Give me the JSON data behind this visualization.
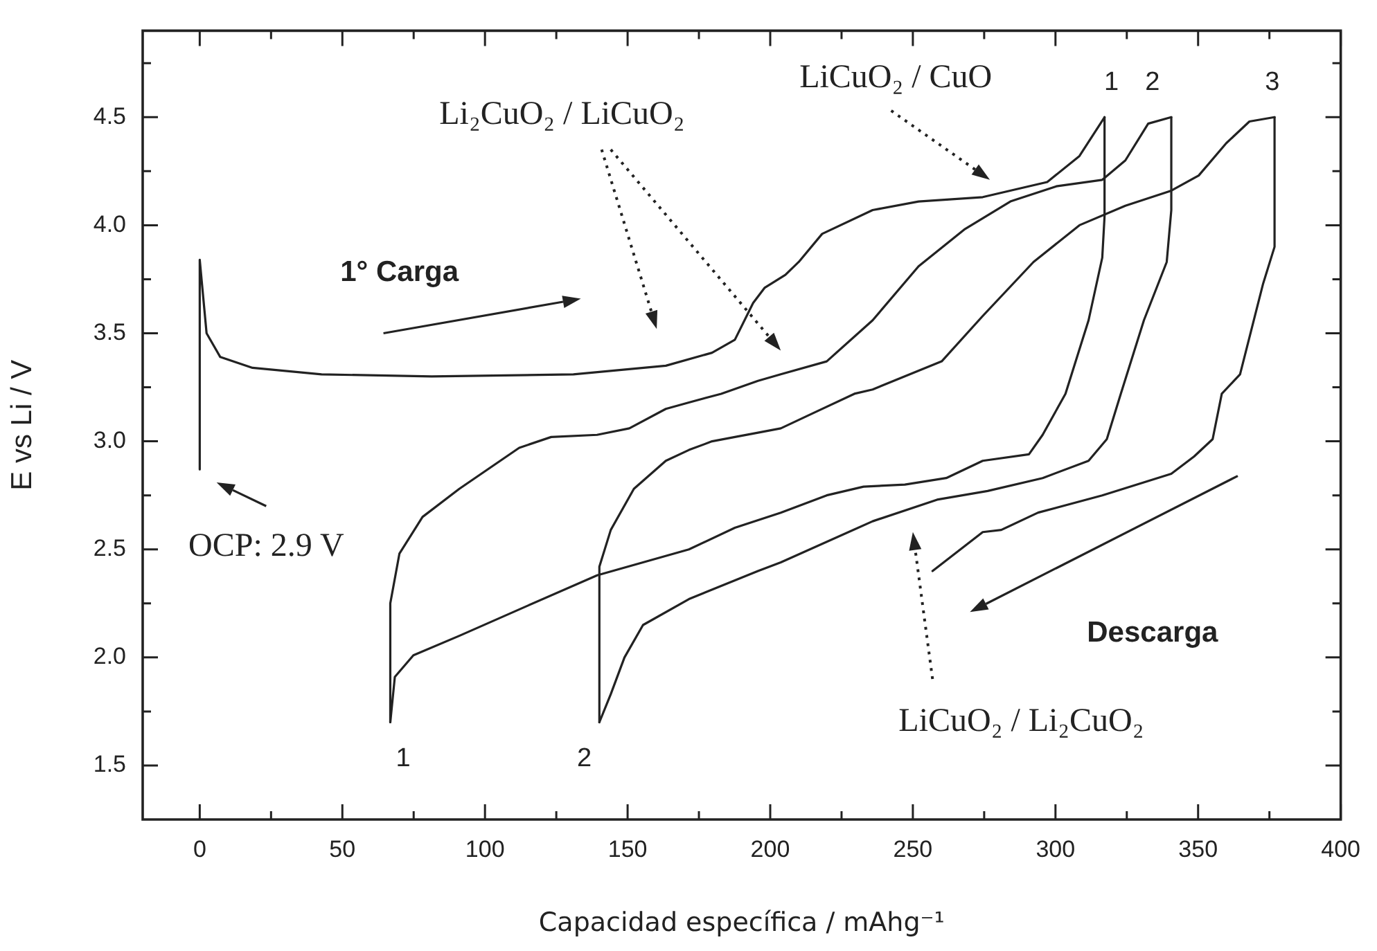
{
  "chart_data": {
    "type": "line",
    "xlabel": "Capacidad específica / mAhg⁻¹",
    "ylabel": "E vs Li / V",
    "xlim": [
      -20,
      400
    ],
    "ylim": [
      1.25,
      4.9
    ],
    "xticks": [
      0,
      {
        "value": 25,
        "label": null
      },
      50,
      {
        "value": 75,
        "label": null
      },
      100,
      {
        "value": 125,
        "label": null
      },
      150,
      {
        "value": 175,
        "label": null
      },
      200,
      {
        "value": 225,
        "label": null
      },
      250,
      {
        "value": 275,
        "label": null
      },
      300,
      {
        "value": 325,
        "label": null
      },
      350,
      {
        "value": 375,
        "label": null
      },
      400
    ],
    "yticks": [
      {
        "value": 1.5,
        "label": "1.5"
      },
      {
        "value": 1.75,
        "label": null
      },
      {
        "value": 2.0,
        "label": "2.0"
      },
      {
        "value": 2.25,
        "label": null
      },
      {
        "value": 2.5,
        "label": "2.5"
      },
      {
        "value": 2.75,
        "label": null
      },
      {
        "value": 3.0,
        "label": "3.0"
      },
      {
        "value": 3.25,
        "label": null
      },
      {
        "value": 3.5,
        "label": "3.5"
      },
      {
        "value": 3.75,
        "label": null
      },
      {
        "value": 4.0,
        "label": "4.0"
      },
      {
        "value": 4.25,
        "label": null
      },
      {
        "value": 4.5,
        "label": "4.5"
      },
      {
        "value": 4.75,
        "label": null
      }
    ],
    "marker": "none",
    "line_style": "solid",
    "series": [
      {
        "color": "#222222",
        "x": [
          0,
          0,
          2.4,
          7.2,
          18.5,
          42.7,
          81.3,
          131,
          163.4,
          179.6,
          187.6,
          194,
          198,
          205.3,
          210,
          218.2,
          235.9,
          252,
          274.5,
          297.1,
          308.4,
          317.2
        ],
        "values": [
          2.87,
          3.84,
          3.5,
          3.39,
          3.34,
          3.31,
          3.3,
          3.31,
          3.35,
          3.41,
          3.47,
          3.64,
          3.71,
          3.77,
          3.83,
          3.96,
          4.07,
          4.11,
          4.13,
          4.2,
          4.32,
          4.5
        ]
      },
      {
        "color": "#222222",
        "x": [
          317.2,
          317.2,
          316.4,
          311.6,
          303.5,
          295.5,
          290.7,
          274.5,
          261.7,
          247.2,
          232.7,
          219.8,
          203.7,
          187.6,
          171.5,
          139.3,
          115.1,
          91,
          74.9,
          68.4,
          66.8
        ],
        "values": [
          4.5,
          4.04,
          3.85,
          3.56,
          3.22,
          3.03,
          2.94,
          2.91,
          2.83,
          2.8,
          2.79,
          2.75,
          2.67,
          2.6,
          2.5,
          2.38,
          2.24,
          2.1,
          2.01,
          1.91,
          1.7
        ]
      },
      {
        "color": "#222222",
        "x": [
          66.8,
          66.8,
          70,
          78.1,
          91,
          112,
          123.2,
          139.3,
          150.6,
          163.4,
          171.5,
          182.8,
          195.7,
          203.7,
          219.8,
          235.9,
          252,
          268,
          284.2,
          300.3,
          316.4,
          324.5,
          332.5,
          340.6
        ],
        "values": [
          1.7,
          2.25,
          2.48,
          2.65,
          2.78,
          2.97,
          3.02,
          3.03,
          3.06,
          3.15,
          3.18,
          3.22,
          3.28,
          3.31,
          3.37,
          3.56,
          3.81,
          3.98,
          4.11,
          4.18,
          4.21,
          4.3,
          4.47,
          4.5
        ]
      },
      {
        "color": "#222222",
        "x": [
          340.6,
          340.6,
          339,
          331,
          322.9,
          318,
          311.6,
          295.5,
          276.2,
          258.5,
          235.9,
          203.7,
          195.7,
          171.5,
          155.4,
          148.9,
          144.1,
          140.1
        ],
        "values": [
          4.5,
          4.07,
          3.83,
          3.56,
          3.22,
          3.01,
          2.91,
          2.83,
          2.77,
          2.73,
          2.63,
          2.44,
          2.4,
          2.27,
          2.15,
          2.0,
          1.83,
          1.7
        ]
      },
      {
        "color": "#222222",
        "x": [
          140.1,
          140.1,
          144.1,
          152.2,
          163.4,
          171.5,
          179.6,
          187.6,
          195.7,
          203.7,
          216.6,
          229.5,
          235.9,
          260.1,
          274.5,
          292.3,
          308.4,
          324.5,
          340.6,
          350.2,
          359.9,
          368,
          376.8
        ],
        "values": [
          1.7,
          2.42,
          2.59,
          2.78,
          2.91,
          2.96,
          3.0,
          3.02,
          3.04,
          3.06,
          3.14,
          3.22,
          3.24,
          3.37,
          3.58,
          3.83,
          4.0,
          4.09,
          4.16,
          4.23,
          4.38,
          4.48,
          4.5
        ]
      },
      {
        "color": "#222222",
        "x": [
          376.8,
          376.8,
          372.8,
          364.7,
          358.3,
          355.1,
          348.6,
          340.6,
          316.4,
          293.9,
          281,
          274.5,
          256.9
        ],
        "values": [
          4.5,
          3.9,
          3.73,
          3.31,
          3.22,
          3.01,
          2.93,
          2.85,
          2.75,
          2.67,
          2.59,
          2.58,
          2.4
        ]
      }
    ],
    "annotations": [
      "1° Carga",
      "Descarga",
      "OCP: 2.9 V",
      "Li₂CuO₂ / LiCuO₂",
      "LiCuO₂ / CuO",
      "LiCuO₂ / Li₂CuO₂",
      "1",
      "2",
      "3",
      "1",
      "2"
    ]
  }
}
